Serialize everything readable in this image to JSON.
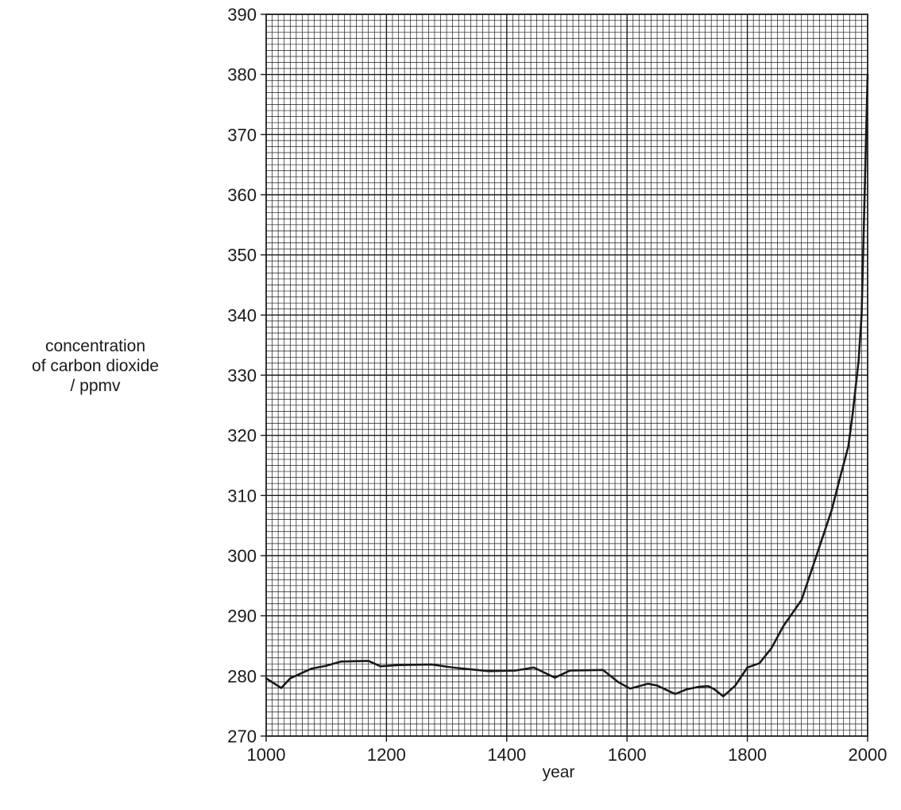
{
  "chart_data": {
    "type": "line",
    "title": "",
    "xlabel": "year",
    "ylabel_lines": [
      "concentration",
      "of carbon dioxide",
      "/ ppmv"
    ],
    "xlim": [
      1000,
      2000
    ],
    "ylim": [
      270,
      390
    ],
    "x_ticks": [
      1000,
      1200,
      1400,
      1600,
      1800,
      2000
    ],
    "y_ticks": [
      270,
      280,
      290,
      300,
      310,
      320,
      330,
      340,
      350,
      360,
      370,
      380,
      390
    ],
    "grid": true,
    "line_color": "#1a1a1a",
    "grid_color": "#1a1a1a",
    "series": [
      {
        "x": [
          1000,
          1025,
          1040,
          1075,
          1100,
          1125,
          1170,
          1190,
          1220,
          1275,
          1310,
          1370,
          1415,
          1445,
          1480,
          1505,
          1560,
          1585,
          1605,
          1635,
          1650,
          1680,
          1700,
          1720,
          1735,
          1745,
          1760,
          1780,
          1800,
          1820,
          1840,
          1860,
          1890,
          1915,
          1940,
          1955,
          1968,
          1975,
          1985,
          1990,
          2000
        ],
        "y": [
          279.6,
          278.0,
          279.6,
          281.2,
          281.7,
          282.4,
          282.5,
          281.6,
          281.8,
          281.9,
          281.4,
          280.8,
          280.9,
          281.4,
          279.7,
          280.9,
          281.0,
          279.0,
          277.9,
          278.7,
          278.4,
          277.0,
          277.8,
          278.2,
          278.3,
          277.8,
          276.6,
          278.4,
          281.4,
          282.1,
          284.6,
          288.3,
          292.6,
          300.0,
          307.5,
          313.3,
          318.2,
          323.5,
          332.4,
          340.0,
          380.0
        ]
      }
    ]
  }
}
